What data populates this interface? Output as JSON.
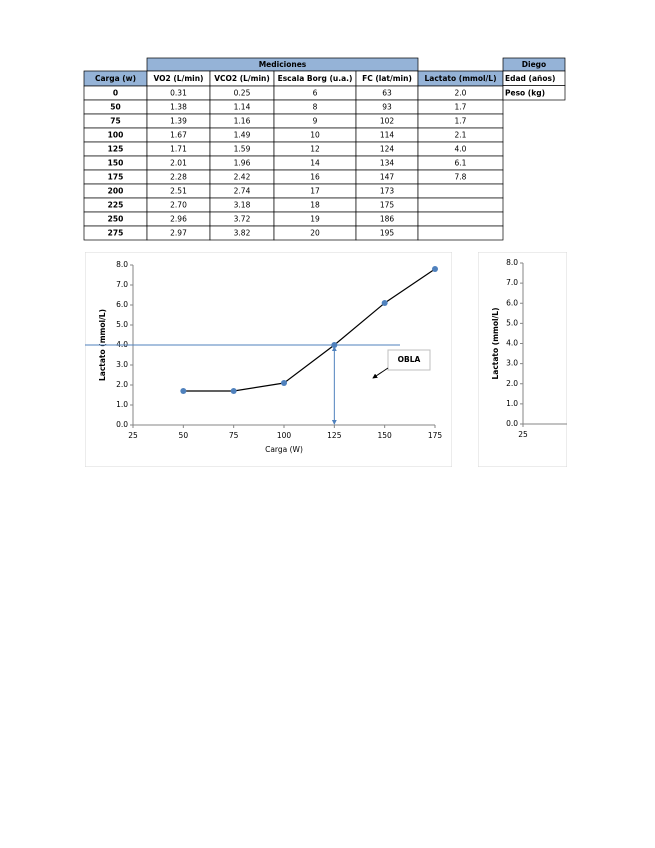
{
  "table": {
    "group_header": "Mediciones",
    "headers": [
      "Carga (w)",
      "VO2 (L/min)",
      "VCO2 (L/min)",
      "Escala Borg (u.a.)",
      "FC (lat/min)",
      "Lactato (mmol/L)"
    ],
    "rows": [
      [
        "0",
        "0.31",
        "0.25",
        "6",
        "63",
        "2.0"
      ],
      [
        "50",
        "1.38",
        "1.14",
        "8",
        "93",
        "1.7"
      ],
      [
        "75",
        "1.39",
        "1.16",
        "9",
        "102",
        "1.7"
      ],
      [
        "100",
        "1.67",
        "1.49",
        "10",
        "114",
        "2.1"
      ],
      [
        "125",
        "1.71",
        "1.59",
        "12",
        "124",
        "4.0"
      ],
      [
        "150",
        "2.01",
        "1.96",
        "14",
        "134",
        "6.1"
      ],
      [
        "175",
        "2.28",
        "2.42",
        "16",
        "147",
        "7.8"
      ],
      [
        "200",
        "2.51",
        "2.74",
        "17",
        "173",
        null
      ],
      [
        "225",
        "2.70",
        "3.18",
        "18",
        "175",
        null
      ],
      [
        "250",
        "2.96",
        "3.72",
        "19",
        "186",
        null
      ],
      [
        "275",
        "2.97",
        "3.82",
        "20",
        "195",
        null
      ]
    ]
  },
  "side_table": {
    "header": "Diego",
    "rows": [
      "Edad (años)",
      "Peso (kg)"
    ]
  },
  "chart_data": [
    {
      "type": "line",
      "x_label": "Carga (W)",
      "y_label": "Lactato (mmol/L)",
      "x": [
        50,
        75,
        100,
        125,
        150,
        175
      ],
      "values": [
        1.7,
        1.7,
        2.1,
        4.0,
        6.1,
        7.8
      ],
      "color": "#4f81bd",
      "line_color": "#000000",
      "xlim": [
        25,
        175
      ],
      "xticks": [
        25,
        50,
        75,
        100,
        125,
        150,
        175
      ],
      "ylim": [
        0,
        8
      ],
      "yticks": [
        {
          "value": 0,
          "label": "0.0"
        },
        {
          "value": 1,
          "label": "1.0"
        },
        {
          "value": 2,
          "label": "2.0"
        },
        {
          "value": 3,
          "label": "3.0"
        },
        {
          "value": 4,
          "label": "4.0"
        },
        {
          "value": 5,
          "label": "5.0"
        },
        {
          "value": 6,
          "label": "6.0"
        },
        {
          "value": 7,
          "label": "7.0"
        },
        {
          "value": 8,
          "label": "8.0"
        }
      ],
      "reference_y": 4,
      "reference_x": 125,
      "annotation": "OBLA"
    },
    {
      "type": "line",
      "y_label": "Lactato (mmol/L)",
      "x": [],
      "values": [],
      "xlim": [
        25,
        175
      ],
      "xticks": [
        25
      ],
      "ylim": [
        0,
        8
      ],
      "yticks": [
        {
          "value": 0,
          "label": "0.0"
        },
        {
          "value": 1,
          "label": "1.0"
        },
        {
          "value": 2,
          "label": "2.0"
        },
        {
          "value": 3,
          "label": "3.0"
        },
        {
          "value": 4,
          "label": "4.0"
        },
        {
          "value": 5,
          "label": "5.0"
        },
        {
          "value": 6,
          "label": "6.0"
        },
        {
          "value": 7,
          "label": "7.0"
        },
        {
          "value": 8,
          "label": "8.0"
        }
      ]
    }
  ]
}
